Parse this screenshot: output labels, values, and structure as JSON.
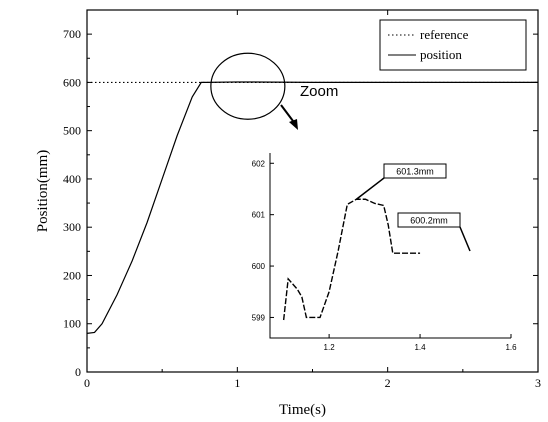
{
  "chart_data": [
    {
      "type": "line",
      "xlabel": "Time(s)",
      "ylabel": "Position(mm)",
      "xlim": [
        0,
        3
      ],
      "ylim": [
        0,
        750
      ],
      "x_ticks": [
        "0",
        "1",
        "2",
        "3"
      ],
      "y_ticks": [
        "0",
        "100",
        "200",
        "300",
        "400",
        "500",
        "600",
        "700"
      ],
      "legend": {
        "placement": "top-right",
        "entries": [
          "reference",
          "position"
        ]
      },
      "series": [
        {
          "name": "reference",
          "style": "dotted",
          "x": [
            0,
            3
          ],
          "y": [
            600,
            600
          ]
        },
        {
          "name": "position",
          "style": "solid",
          "x": [
            0,
            0.05,
            0.1,
            0.2,
            0.3,
            0.4,
            0.5,
            0.6,
            0.7,
            0.76,
            0.8,
            1.0,
            1.5,
            2.0,
            2.5,
            3.0
          ],
          "y": [
            80,
            82,
            100,
            160,
            230,
            310,
            400,
            490,
            570,
            600,
            600,
            601,
            600,
            600,
            600,
            600
          ]
        }
      ],
      "annotation": {
        "text": "Zoom",
        "center": [
          1.07,
          592
        ]
      }
    },
    {
      "type": "line",
      "inset": true,
      "xlim": [
        1.07,
        1.6
      ],
      "ylim": [
        598.6,
        602.2
      ],
      "x_ticks": [
        "1.2",
        "1.4",
        "1.6"
      ],
      "y_ticks": [
        "599",
        "600",
        "601",
        "602"
      ],
      "series": [
        {
          "name": "position",
          "style": "dashed",
          "x": [
            1.1,
            1.11,
            1.13,
            1.14,
            1.15,
            1.16,
            1.18,
            1.2,
            1.22,
            1.24,
            1.26,
            1.28,
            1.3,
            1.32,
            1.33,
            1.34,
            1.36,
            1.38,
            1.4
          ],
          "y": [
            598.95,
            599.75,
            599.55,
            599.4,
            599.0,
            599.0,
            599.0,
            599.5,
            600.3,
            601.2,
            601.3,
            601.3,
            601.22,
            601.18,
            600.8,
            600.25,
            600.25,
            600.25,
            600.25
          ]
        }
      ],
      "callouts": [
        {
          "text": "601.3mm",
          "x": 1.26,
          "y": 601.3
        },
        {
          "text": "600.2mm",
          "x": 1.38,
          "y": 600.25
        }
      ]
    }
  ]
}
